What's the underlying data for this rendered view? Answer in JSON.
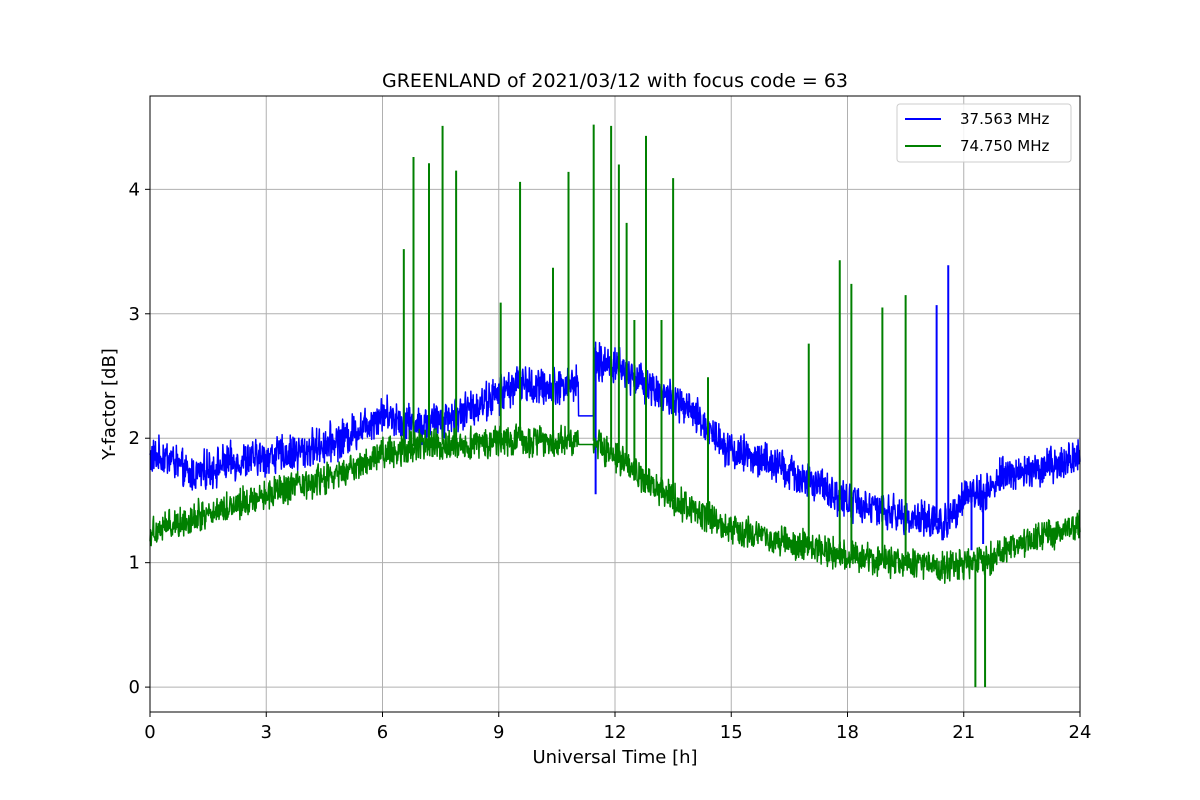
{
  "chart_data": {
    "type": "line",
    "title": "GREENLAND of 2021/03/12 with focus code = 63",
    "xlabel": "Universal Time [h]",
    "ylabel": "Y-factor [dB]",
    "xlim": [
      0,
      24
    ],
    "ylim": [
      -0.2,
      4.75
    ],
    "xticks": [
      0,
      3,
      6,
      9,
      12,
      15,
      18,
      21,
      24
    ],
    "yticks": [
      0,
      1,
      2,
      3,
      4
    ],
    "grid": true,
    "legend_position": "top-right",
    "series": [
      {
        "name": "37.563 MHz",
        "color": "#0000ff",
        "noise_amplitude": 0.12,
        "baseline": [
          [
            0,
            1.85
          ],
          [
            0.5,
            1.85
          ],
          [
            1.0,
            1.7
          ],
          [
            1.5,
            1.75
          ],
          [
            2,
            1.8
          ],
          [
            3,
            1.85
          ],
          [
            4,
            1.9
          ],
          [
            5,
            2.0
          ],
          [
            6,
            2.2
          ],
          [
            7,
            2.1
          ],
          [
            8,
            2.2
          ],
          [
            9,
            2.35
          ],
          [
            9.5,
            2.45
          ],
          [
            10,
            2.4
          ],
          [
            11,
            2.45
          ],
          [
            11.5,
            2.6
          ],
          [
            12,
            2.6
          ],
          [
            13,
            2.4
          ],
          [
            14,
            2.2
          ],
          [
            15,
            1.9
          ],
          [
            16,
            1.8
          ],
          [
            17,
            1.65
          ],
          [
            18,
            1.5
          ],
          [
            19,
            1.4
          ],
          [
            20,
            1.35
          ],
          [
            20.5,
            1.3
          ],
          [
            21,
            1.55
          ],
          [
            21.5,
            1.55
          ],
          [
            22,
            1.7
          ],
          [
            23,
            1.75
          ],
          [
            24,
            1.85
          ]
        ],
        "gaps": [
          [
            11.05,
            11.45
          ]
        ],
        "gap_level": 2.18,
        "spikes": [
          [
            20.3,
            3.07
          ],
          [
            20.6,
            3.39
          ],
          [
            11.5,
            1.55
          ],
          [
            21.2,
            1.1
          ],
          [
            21.5,
            1.15
          ]
        ]
      },
      {
        "name": "74.750 MHz",
        "color": "#008000",
        "noise_amplitude": 0.1,
        "baseline": [
          [
            0,
            1.25
          ],
          [
            1,
            1.35
          ],
          [
            2,
            1.45
          ],
          [
            3,
            1.55
          ],
          [
            4,
            1.62
          ],
          [
            5,
            1.72
          ],
          [
            6,
            1.88
          ],
          [
            7,
            1.95
          ],
          [
            8,
            1.95
          ],
          [
            9,
            1.98
          ],
          [
            10,
            1.98
          ],
          [
            11,
            1.98
          ],
          [
            11.5,
            1.98
          ],
          [
            12,
            1.85
          ],
          [
            13,
            1.6
          ],
          [
            14,
            1.42
          ],
          [
            15,
            1.28
          ],
          [
            16,
            1.2
          ],
          [
            17,
            1.12
          ],
          [
            18,
            1.05
          ],
          [
            19,
            1.02
          ],
          [
            20,
            0.98
          ],
          [
            21,
            0.98
          ],
          [
            21.5,
            1.0
          ],
          [
            22,
            1.1
          ],
          [
            23,
            1.2
          ],
          [
            24,
            1.3
          ]
        ],
        "gaps": [
          [
            11.05,
            11.45
          ]
        ],
        "gap_level": 1.95,
        "spikes": [
          [
            6.55,
            3.52
          ],
          [
            6.8,
            4.26
          ],
          [
            7.2,
            4.21
          ],
          [
            7.55,
            4.51
          ],
          [
            7.9,
            4.15
          ],
          [
            9.05,
            3.09
          ],
          [
            9.55,
            4.06
          ],
          [
            10.4,
            3.37
          ],
          [
            10.8,
            4.14
          ],
          [
            11.45,
            4.52
          ],
          [
            11.9,
            4.51
          ],
          [
            12.1,
            4.2
          ],
          [
            12.3,
            3.73
          ],
          [
            12.5,
            2.95
          ],
          [
            12.8,
            4.43
          ],
          [
            13.2,
            2.95
          ],
          [
            13.5,
            4.09
          ],
          [
            14.4,
            2.49
          ],
          [
            17.0,
            2.76
          ],
          [
            17.8,
            3.43
          ],
          [
            18.1,
            3.24
          ],
          [
            18.9,
            3.05
          ],
          [
            19.5,
            3.15
          ],
          [
            21.3,
            0.0
          ],
          [
            21.55,
            0.0
          ]
        ]
      }
    ]
  }
}
